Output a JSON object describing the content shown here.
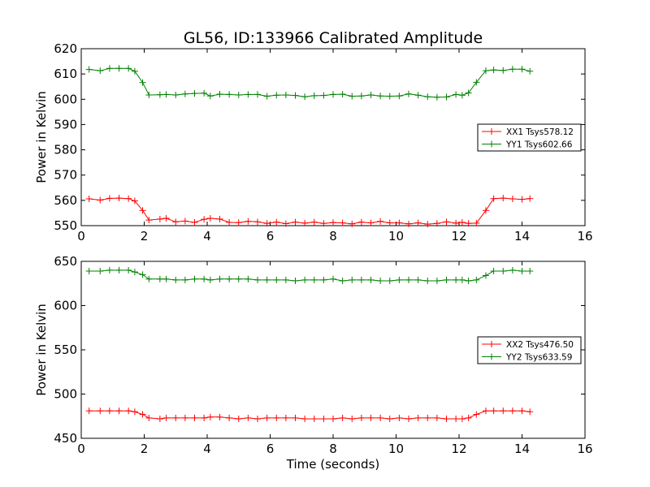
{
  "figure": {
    "title": "GL56, ID:133966 Calibrated Amplitude",
    "colors": {
      "xx": "#ff0000",
      "yy": "#008000"
    }
  },
  "chart_data": [
    {
      "type": "line",
      "title": "GL56, ID:133966 Calibrated Amplitude",
      "xlabel": "",
      "ylabel": "Power in Kelvin",
      "xlim": [
        0,
        16
      ],
      "ylim": [
        550,
        620
      ],
      "xticks": [
        "0",
        "2",
        "4",
        "6",
        "8",
        "10",
        "12",
        "14",
        "16"
      ],
      "yticks": [
        "550",
        "560",
        "570",
        "580",
        "590",
        "600",
        "610",
        "620"
      ],
      "grid": false,
      "legend_position": "center-right",
      "x": [
        0.25,
        0.6,
        0.9,
        1.2,
        1.5,
        1.7,
        1.95,
        2.15,
        2.5,
        2.7,
        3.0,
        3.3,
        3.6,
        3.9,
        4.1,
        4.4,
        4.7,
        5.0,
        5.3,
        5.6,
        5.9,
        6.2,
        6.5,
        6.8,
        7.1,
        7.4,
        7.7,
        8.0,
        8.3,
        8.6,
        8.9,
        9.2,
        9.5,
        9.8,
        10.1,
        10.4,
        10.7,
        11.0,
        11.3,
        11.6,
        11.9,
        12.1,
        12.3,
        12.55,
        12.85,
        13.1,
        13.4,
        13.7,
        14.0,
        14.25
      ],
      "series": [
        {
          "name": "XX1 Tsys578.12",
          "color": "#ff0000",
          "values": [
            560.6,
            560.1,
            560.8,
            560.9,
            560.7,
            559.8,
            556.0,
            552.2,
            552.6,
            552.9,
            551.5,
            551.8,
            551.3,
            552.5,
            552.9,
            552.6,
            551.3,
            551.2,
            551.7,
            551.5,
            550.9,
            551.4,
            550.8,
            551.4,
            551.0,
            551.4,
            550.9,
            551.2,
            551.1,
            550.7,
            551.4,
            551.1,
            551.7,
            551.1,
            551.1,
            550.7,
            551.1,
            550.6,
            550.9,
            551.5,
            551.0,
            551.3,
            550.9,
            551.0,
            556.0,
            560.7,
            560.9,
            560.6,
            560.4,
            560.7
          ]
        },
        {
          "name": "YY1 Tsys602.66",
          "color": "#008000",
          "values": [
            611.8,
            611.3,
            612.2,
            612.2,
            612.2,
            611.1,
            606.6,
            601.7,
            601.8,
            601.9,
            601.7,
            602.1,
            602.3,
            602.4,
            601.3,
            602.0,
            601.9,
            601.7,
            601.9,
            601.9,
            601.2,
            601.6,
            601.7,
            601.5,
            601.0,
            601.4,
            601.5,
            601.9,
            602.0,
            601.2,
            601.3,
            601.7,
            601.3,
            601.2,
            601.3,
            602.1,
            601.6,
            601.0,
            600.8,
            600.9,
            601.9,
            601.6,
            602.5,
            606.7,
            611.3,
            611.6,
            611.4,
            611.9,
            611.9,
            611.1
          ]
        }
      ]
    },
    {
      "type": "line",
      "title": "",
      "xlabel": "Time (seconds)",
      "ylabel": "Power in Kelvin",
      "xlim": [
        0,
        16
      ],
      "ylim": [
        450,
        650
      ],
      "xticks": [
        "0",
        "2",
        "4",
        "6",
        "8",
        "10",
        "12",
        "14",
        "16"
      ],
      "yticks": [
        "450",
        "500",
        "550",
        "600",
        "650"
      ],
      "grid": false,
      "legend_position": "center-right",
      "x": [
        0.25,
        0.6,
        0.9,
        1.2,
        1.5,
        1.7,
        1.95,
        2.15,
        2.5,
        2.7,
        3.0,
        3.3,
        3.6,
        3.9,
        4.1,
        4.4,
        4.7,
        5.0,
        5.3,
        5.6,
        5.9,
        6.2,
        6.5,
        6.8,
        7.1,
        7.4,
        7.7,
        8.0,
        8.3,
        8.6,
        8.9,
        9.2,
        9.5,
        9.8,
        10.1,
        10.4,
        10.7,
        11.0,
        11.3,
        11.6,
        11.9,
        12.1,
        12.3,
        12.55,
        12.85,
        13.1,
        13.4,
        13.7,
        14.0,
        14.25
      ],
      "series": [
        {
          "name": "XX2 Tsys476.50",
          "color": "#ff0000",
          "values": [
            481,
            481,
            481,
            481,
            481,
            480,
            477,
            473,
            472,
            473,
            473,
            473,
            473,
            473,
            474,
            474,
            473,
            472,
            473,
            472,
            473,
            473,
            473,
            473,
            472,
            472,
            472,
            472,
            473,
            472,
            473,
            473,
            473,
            472,
            473,
            472,
            473,
            473,
            473,
            472,
            472,
            472,
            473,
            477,
            481,
            481,
            481,
            481,
            481,
            480
          ]
        },
        {
          "name": "YY2 Tsys633.59",
          "color": "#008000",
          "values": [
            639,
            639,
            640,
            640,
            640,
            638,
            635,
            630,
            630,
            630,
            629,
            629,
            630,
            630,
            629,
            630,
            630,
            630,
            630,
            629,
            629,
            629,
            629,
            628,
            629,
            629,
            629,
            630,
            628,
            629,
            629,
            629,
            628,
            628,
            629,
            629,
            629,
            628,
            628,
            629,
            629,
            629,
            628,
            629,
            634,
            639,
            639,
            640,
            639,
            639
          ]
        }
      ]
    }
  ]
}
